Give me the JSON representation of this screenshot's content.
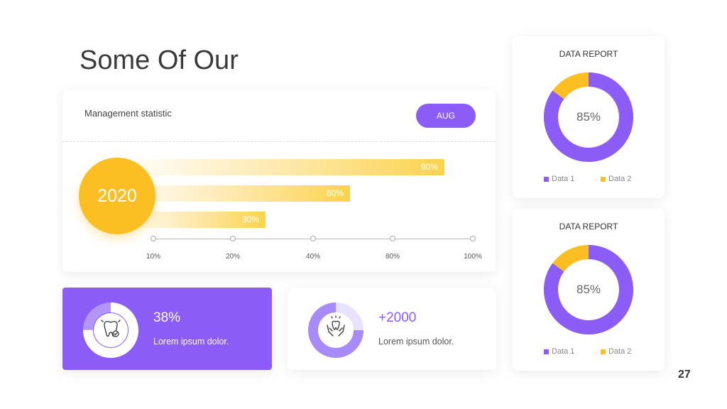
{
  "title": "Some Of Our",
  "management": {
    "label": "Management statistic",
    "button": "AUG",
    "year": "2020",
    "bars": [
      {
        "label": "90%",
        "value": 90
      },
      {
        "label": "60%",
        "value": 60
      },
      {
        "label": "30%",
        "value": 30
      }
    ],
    "axis_ticks": [
      "10%",
      "20%",
      "40%",
      "80%",
      "100%"
    ]
  },
  "stats": [
    {
      "value": "38%",
      "desc": "Lorem ipsum dolor.",
      "fraction": 0.75
    },
    {
      "value": "+2000",
      "desc": "Lorem ipsum dolor.",
      "fraction": 0.75
    }
  ],
  "reports": [
    {
      "title": "DATA REPORT",
      "center": "85%",
      "data1_pct": 85,
      "legend": [
        "Data 1",
        "Data 2"
      ]
    },
    {
      "title": "DATA REPORT",
      "center": "85%",
      "data1_pct": 85,
      "legend": [
        "Data 1",
        "Data 2"
      ]
    }
  ],
  "colors": {
    "purple": "#8b5cf6",
    "yellow": "#fbbf24",
    "light_purple": "#c4b5fd"
  },
  "page_number": "27"
}
